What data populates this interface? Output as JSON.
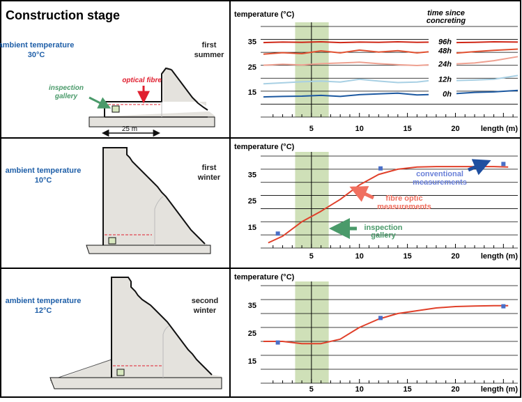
{
  "header": {
    "title": "Construction stage"
  },
  "colors": {
    "ambient_blue": "#1f5fa8",
    "fibre_red": "#e0402a",
    "gallery_green": "#4a9a6a",
    "conventional_blue": "#4a6fc8",
    "green_band": "#cfe0b8",
    "concrete": "#e4e2dd"
  },
  "panels": [
    {
      "ambient_label": "ambient temperature",
      "ambient_value": "30°C",
      "season_line1": "first",
      "season_line2": "summer",
      "optical_fibre_label": "optical fibre",
      "inspection_line1": "inspection",
      "inspection_line2": "gallery",
      "scale_label": "25 m"
    },
    {
      "ambient_label": "ambient temperature",
      "ambient_value": "10°C",
      "season_line1": "first",
      "season_line2": "winter"
    },
    {
      "ambient_label": "ambient temperature",
      "ambient_value": "12°C",
      "season_line1": "second",
      "season_line2": "winter"
    }
  ],
  "chart_data": [
    {
      "type": "line",
      "ylabel": "temperature (°C)",
      "xlabel": "length (m)",
      "legend_title_line1": "time since",
      "legend_title_line2": "concreting",
      "xlim": [
        0,
        26.5
      ],
      "ylim": [
        5,
        41
      ],
      "x_ticks": [
        5,
        10,
        15,
        20
      ],
      "y_ticks": [
        15,
        25,
        35
      ],
      "green_band_x": [
        3.3,
        6.8
      ],
      "series": [
        {
          "name": "96h",
          "color": "#d02818",
          "points": [
            [
              0,
              34.6
            ],
            [
              2,
              34.8
            ],
            [
              4,
              34.7
            ],
            [
              6,
              34.9
            ],
            [
              8,
              34.6
            ],
            [
              10,
              34.8
            ],
            [
              12,
              34.7
            ],
            [
              14,
              34.9
            ],
            [
              16,
              34.7
            ],
            [
              18,
              34.8
            ],
            [
              20,
              34.6
            ],
            [
              22,
              34.7
            ],
            [
              24,
              34.9
            ],
            [
              26.5,
              34.8
            ]
          ]
        },
        {
          "name": "48h",
          "color": "#e05030",
          "points": [
            [
              0,
              30.0
            ],
            [
              2,
              30.6
            ],
            [
              4,
              30.2
            ],
            [
              6,
              31.3
            ],
            [
              8,
              30.5
            ],
            [
              10,
              31.6
            ],
            [
              12,
              30.8
            ],
            [
              14,
              31.4
            ],
            [
              16,
              30.5
            ],
            [
              18,
              31.2
            ],
            [
              20,
              30.4
            ],
            [
              22,
              31.0
            ],
            [
              24,
              31.5
            ],
            [
              26.5,
              32.0
            ]
          ]
        },
        {
          "name": "24h",
          "color": "#eea090",
          "points": [
            [
              0,
              25.6
            ],
            [
              2,
              26.0
            ],
            [
              4,
              25.7
            ],
            [
              6,
              26.2
            ],
            [
              8,
              26.5
            ],
            [
              10,
              26.8
            ],
            [
              12,
              26.2
            ],
            [
              14,
              25.8
            ],
            [
              16,
              25.5
            ],
            [
              18,
              25.9
            ],
            [
              20,
              26.1
            ],
            [
              22,
              26.5
            ],
            [
              24,
              27.4
            ],
            [
              26.5,
              29.0
            ]
          ]
        },
        {
          "name": "12h",
          "color": "#a8d0e4",
          "points": [
            [
              0,
              18.2
            ],
            [
              2,
              18.6
            ],
            [
              4,
              19.0
            ],
            [
              6,
              19.3
            ],
            [
              8,
              18.9
            ],
            [
              10,
              20.0
            ],
            [
              12,
              19.3
            ],
            [
              14,
              18.7
            ],
            [
              16,
              18.9
            ],
            [
              18,
              19.8
            ],
            [
              20,
              19.5
            ],
            [
              22,
              19.7
            ],
            [
              24,
              20.0
            ],
            [
              26.5,
              21.5
            ]
          ]
        },
        {
          "name": "0h",
          "color": "#1c58a0",
          "points": [
            [
              0,
              13.0
            ],
            [
              2,
              13.2
            ],
            [
              4,
              13.3
            ],
            [
              6,
              13.6
            ],
            [
              8,
              13.2
            ],
            [
              10,
              13.9
            ],
            [
              12,
              14.2
            ],
            [
              14,
              14.5
            ],
            [
              16,
              13.8
            ],
            [
              18,
              14.0
            ],
            [
              20,
              14.3
            ],
            [
              22,
              14.8
            ],
            [
              24,
              15.0
            ],
            [
              26.5,
              15.6
            ]
          ]
        }
      ]
    },
    {
      "type": "line",
      "ylabel": "temperature (°C)",
      "xlabel": "length (m)",
      "xlim": [
        0,
        26.5
      ],
      "ylim": [
        7,
        42
      ],
      "x_ticks": [
        5,
        10,
        15,
        20
      ],
      "y_ticks": [
        15,
        25,
        35
      ],
      "green_band_x": [
        3.3,
        6.8
      ],
      "series": [
        {
          "name": "fibre optic measurements",
          "color": "#e0402a",
          "points": [
            [
              0.5,
              9.0
            ],
            [
              2,
              11.5
            ],
            [
              4,
              17.0
            ],
            [
              6,
              21.0
            ],
            [
              8,
              25.5
            ],
            [
              10,
              31.0
            ],
            [
              12,
              35.0
            ],
            [
              14,
              37.0
            ],
            [
              16,
              37.8
            ],
            [
              18,
              38.0
            ],
            [
              20,
              38.0
            ],
            [
              22,
              38.0
            ],
            [
              24,
              38.0
            ],
            [
              25.5,
              37.8
            ]
          ]
        }
      ],
      "conventional_points": [
        [
          1.5,
          12.5
        ],
        [
          12.2,
          37.3
        ],
        [
          25,
          39.0
        ]
      ],
      "annotations": {
        "conventional_line1": "conventional",
        "conventional_line2": "measurements",
        "fibre_line1": "fibre optic",
        "fibre_line2": "measurements",
        "inspection_line1": "inspection",
        "inspection_line2": "gallery"
      }
    },
    {
      "type": "line",
      "ylabel": "temperature (°C)",
      "xlabel": "length (m)",
      "xlim": [
        0,
        26.5
      ],
      "ylim": [
        7,
        42
      ],
      "x_ticks": [
        5,
        10,
        15,
        20
      ],
      "y_ticks": [
        15,
        25,
        35
      ],
      "green_band_x": [
        3.3,
        6.8
      ],
      "series": [
        {
          "name": "fibre optic measurements",
          "color": "#e0402a",
          "points": [
            [
              0,
              22.0
            ],
            [
              2,
              22.0
            ],
            [
              4,
              21.2
            ],
            [
              6,
              21.2
            ],
            [
              8,
              22.8
            ],
            [
              10,
              27.0
            ],
            [
              12,
              30.0
            ],
            [
              14,
              32.0
            ],
            [
              16,
              33.0
            ],
            [
              18,
              34.0
            ],
            [
              20,
              34.5
            ],
            [
              22,
              34.7
            ],
            [
              24,
              34.8
            ],
            [
              25.5,
              34.8
            ]
          ]
        }
      ],
      "conventional_points": [
        [
          1.5,
          21.6
        ],
        [
          12.2,
          30.4
        ],
        [
          25,
          34.6
        ]
      ]
    }
  ]
}
